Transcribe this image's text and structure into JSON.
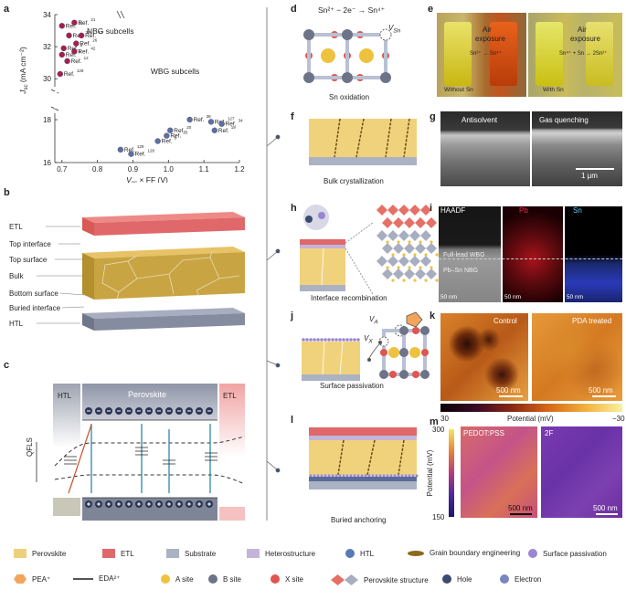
{
  "panels": {
    "a": {
      "label": "a"
    },
    "b": {
      "label": "b"
    },
    "c": {
      "label": "c"
    },
    "d": {
      "label": "d",
      "equation": "Sn²⁺ − 2e⁻ → Sn⁴⁺",
      "vacancy": "V",
      "vacancy_sub": "Sn",
      "caption": "Sn oxidation"
    },
    "e": {
      "label": "e",
      "air": "Air",
      "exposure": "exposure",
      "left_reaction": "Sn²⁺ → Sn⁴⁺",
      "right_reaction": "Sn⁴⁺ + Sn → 2Sn²⁺",
      "without": "Without Sn",
      "with": "With Sn",
      "jar_label": "Sn"
    },
    "f": {
      "label": "f",
      "caption": "Bulk crystallization"
    },
    "g": {
      "label": "g",
      "left": "Antisolvent",
      "right": "Gas quenching",
      "scale": "1 μm"
    },
    "h": {
      "label": "h",
      "caption": "Interface recombination"
    },
    "i": {
      "label": "i",
      "haadf": "HAADF",
      "pb": "Pb",
      "sn": "Sn",
      "full_lead": "Full-lead WBG",
      "pbsn": "Pb–Sn NBG",
      "scale": "50 nm"
    },
    "j": {
      "label": "j",
      "va": "V",
      "va_sub": "A",
      "vx": "V",
      "vx_sub": "X",
      "caption": "Surface passivation"
    },
    "k": {
      "label": "k",
      "control": "Control",
      "pda": "PDA treated",
      "scale": "500 nm",
      "cb_min": "30",
      "cb_max": "−30",
      "cb_label": "Potential (mV)"
    },
    "l": {
      "label": "l",
      "caption": "Buried anchoring"
    },
    "m": {
      "label": "m",
      "left": "PEDOT:PSS",
      "right": "2F",
      "scale": "500 nm",
      "cb_top": "300",
      "cb_bottom": "150",
      "cb_label": "Potential (mV)"
    }
  },
  "layer_labels": [
    "ETL",
    "Top interface",
    "Top surface",
    "Bulk",
    "Bottom surface",
    "Buried interface",
    "HTL"
  ],
  "band": {
    "htl": "HTL",
    "perovskite": "Perovskite",
    "etl": "ETL",
    "qfls": "QFLS"
  },
  "chart_data": {
    "type": "scatter",
    "xlabel": "V",
    "xlabel_sub": "oc",
    "xlabel_rest": " × FF (V)",
    "ylabel": "J",
    "ylabel_sub": "sc",
    "ylabel_rest": " (mA cm⁻²)",
    "xticks": [
      "0.7",
      "0.8",
      "0.9",
      "1.0",
      "1.1",
      "1.2"
    ],
    "xlim": [
      0.68,
      1.2
    ],
    "yticks_top": [
      "30",
      "32",
      "34"
    ],
    "ylim_top": [
      29.5,
      34
    ],
    "yticks_bottom": [
      "16",
      "18"
    ],
    "ylim_bottom": [
      16,
      18.3
    ],
    "annotations": [
      "NBG subcells",
      "WBG subcells"
    ],
    "series": [
      {
        "name": "NBG subcells",
        "color": "#a21f52",
        "points": [
          {
            "x": 0.7,
            "y": 33.3,
            "ref": "11"
          },
          {
            "x": 0.735,
            "y": 33.5,
            "ref": "21"
          },
          {
            "x": 0.72,
            "y": 32.7,
            "ref": "39"
          },
          {
            "x": 0.755,
            "y": 32.7,
            "ref": "43"
          },
          {
            "x": 0.705,
            "y": 31.9,
            "ref": "6"
          },
          {
            "x": 0.74,
            "y": 32.2,
            "ref": "26"
          },
          {
            "x": 0.7,
            "y": 31.5,
            "ref": "5"
          },
          {
            "x": 0.735,
            "y": 31.7,
            "ref": "42"
          },
          {
            "x": 0.715,
            "y": 31.1,
            "ref": "12"
          },
          {
            "x": 0.695,
            "y": 30.3,
            "ref": "129"
          }
        ]
      },
      {
        "name": "WBG subcells",
        "color": "#5c6fa6",
        "points": [
          {
            "x": 0.865,
            "y": 16.6,
            "ref": "129"
          },
          {
            "x": 0.895,
            "y": 16.4,
            "ref": "128"
          },
          {
            "x": 0.97,
            "y": 17.0,
            "ref": "5"
          },
          {
            "x": 1.005,
            "y": 17.5,
            "ref": "20"
          },
          {
            "x": 0.995,
            "y": 17.25,
            "ref": "25"
          },
          {
            "x": 1.06,
            "y": 18.0,
            "ref": "38"
          },
          {
            "x": 1.12,
            "y": 17.9,
            "ref": "127"
          },
          {
            "x": 1.13,
            "y": 17.5,
            "ref": "19"
          },
          {
            "x": 1.15,
            "y": 17.8,
            "ref": "34"
          }
        ]
      }
    ],
    "point_label": "Ref."
  },
  "legend": [
    {
      "label": "Perovskite",
      "color": "#efd07a",
      "kind": "swatch"
    },
    {
      "label": "ETL",
      "color": "#e0686a",
      "kind": "swatch"
    },
    {
      "label": "Substrate",
      "color": "#aab2c3",
      "kind": "swatch"
    },
    {
      "label": "Heterostructure",
      "color": "#c4b4d8",
      "kind": "swatch"
    },
    {
      "label": "HTL",
      "color": "#5b78b8",
      "kind": "dot"
    },
    {
      "label": "Grain boundary engineering",
      "color": "#8a6a1e",
      "kind": "ellipse"
    },
    {
      "label": "Surface passivation",
      "color": "#9a87cf",
      "kind": "dot"
    },
    {
      "label": "PEA⁺",
      "color": "#f2a55a",
      "kind": "pea"
    },
    {
      "label": "EDA²⁺",
      "color": "#555",
      "kind": "eda"
    },
    {
      "label": "A site",
      "color": "#efc23e",
      "kind": "dot"
    },
    {
      "label": "B site",
      "color": "#6d7487",
      "kind": "dot"
    },
    {
      "label": "X site",
      "color": "#e2554f",
      "kind": "dot"
    },
    {
      "label": "Perovskite structure",
      "color": "#e57066",
      "kind": "struct"
    },
    {
      "label": "Hole",
      "color": "#3a4a70",
      "kind": "hole"
    },
    {
      "label": "Electron",
      "color": "#7a86c2",
      "kind": "electron"
    }
  ]
}
